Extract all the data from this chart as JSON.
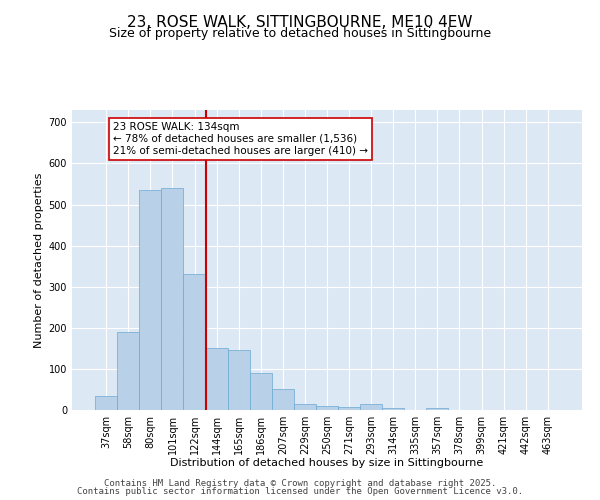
{
  "title_line1": "23, ROSE WALK, SITTINGBOURNE, ME10 4EW",
  "title_line2": "Size of property relative to detached houses in Sittingbourne",
  "xlabel": "Distribution of detached houses by size in Sittingbourne",
  "ylabel": "Number of detached properties",
  "categories": [
    "37sqm",
    "58sqm",
    "80sqm",
    "101sqm",
    "122sqm",
    "144sqm",
    "165sqm",
    "186sqm",
    "207sqm",
    "229sqm",
    "250sqm",
    "271sqm",
    "293sqm",
    "314sqm",
    "335sqm",
    "357sqm",
    "378sqm",
    "399sqm",
    "421sqm",
    "442sqm",
    "463sqm"
  ],
  "values": [
    35,
    190,
    535,
    540,
    330,
    150,
    145,
    90,
    50,
    15,
    10,
    8,
    15,
    5,
    0,
    5,
    0,
    0,
    0,
    0,
    0
  ],
  "bar_color": "#b8d0e8",
  "bar_edge_color": "#6aaad4",
  "red_line_index": 4,
  "annotation_text": "23 ROSE WALK: 134sqm\n← 78% of detached houses are smaller (1,536)\n21% of semi-detached houses are larger (410) →",
  "annotation_box_color": "white",
  "annotation_box_edge_color": "#cc0000",
  "red_line_color": "#cc0000",
  "ylim": [
    0,
    730
  ],
  "yticks": [
    0,
    100,
    200,
    300,
    400,
    500,
    600,
    700
  ],
  "background_color": "#dde8f5",
  "grid_color": "white",
  "footer_line1": "Contains HM Land Registry data © Crown copyright and database right 2025.",
  "footer_line2": "Contains public sector information licensed under the Open Government Licence v3.0.",
  "title_fontsize": 11,
  "subtitle_fontsize": 9,
  "axis_label_fontsize": 8,
  "tick_fontsize": 7,
  "annotation_fontsize": 7.5,
  "footer_fontsize": 6.5
}
